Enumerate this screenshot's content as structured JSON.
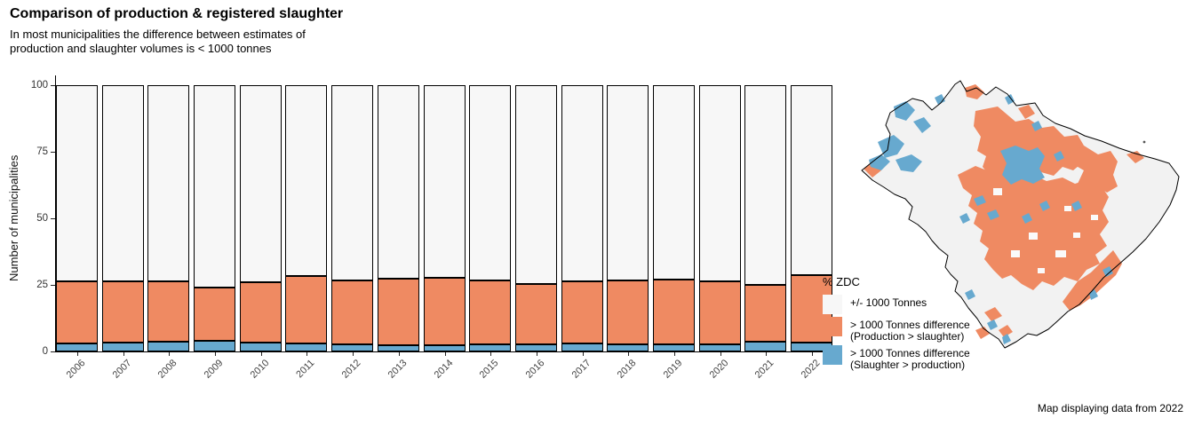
{
  "header": {
    "title": "Comparison of production & registered slaughter",
    "subtitle": "In most municipalities the difference between estimates of production and slaughter volumes is < 1000 tonnes"
  },
  "chart_data": {
    "type": "bar",
    "stacked": true,
    "ylabel": "Number of municipalities",
    "ylim": [
      0,
      100
    ],
    "yticks": [
      0,
      25,
      50,
      75,
      100
    ],
    "categories": [
      "2006",
      "2007",
      "2008",
      "2009",
      "2010",
      "2011",
      "2012",
      "2013",
      "2014",
      "2015",
      "2016",
      "2017",
      "2018",
      "2019",
      "2020",
      "2021",
      "2022"
    ],
    "series": [
      {
        "name": "> 1000 Tonnes difference (Slaughter > production)",
        "color": "#67A9CF",
        "values": [
          3.1,
          3.3,
          3.7,
          3.9,
          3.3,
          3.0,
          2.8,
          2.4,
          2.2,
          2.6,
          2.6,
          3.0,
          2.6,
          2.8,
          2.8,
          3.6,
          3.3
        ]
      },
      {
        "name": "> 1000 Tonnes difference (Production > slaughter)",
        "color": "#EF8A62",
        "values": [
          23.1,
          23.0,
          22.6,
          20.1,
          22.8,
          25.3,
          23.9,
          24.9,
          25.5,
          24.1,
          22.8,
          23.4,
          24.1,
          24.2,
          23.6,
          21.4,
          25.3
        ]
      },
      {
        "name": "+/- 1000 Tonnes",
        "color": "#F7F7F7",
        "values": [
          73.8,
          73.7,
          73.7,
          76.0,
          73.9,
          71.7,
          73.3,
          72.7,
          72.3,
          73.3,
          74.6,
          73.6,
          73.3,
          73.0,
          73.6,
          75.0,
          71.4
        ]
      }
    ],
    "legend_title": "% ZDC",
    "legend_position": "right",
    "grid": false
  },
  "legend": {
    "title": "% ZDC",
    "items": [
      {
        "label": "+/- 1000 Tonnes",
        "color": "#F7F7F7"
      },
      {
        "label": "> 1000 Tonnes difference\n(Production > slaughter)",
        "color": "#EF8A62"
      },
      {
        "label": "> 1000 Tonnes difference\n(Slaughter > production)",
        "color": "#67A9CF"
      }
    ]
  },
  "map": {
    "caption": "Map displaying data from 2022",
    "colors": {
      "within_1000": "#F2F2F2",
      "production_gt_slaughter": "#EF8A62",
      "slaughter_gt_production": "#67A9CF",
      "outline": "#000000"
    }
  }
}
